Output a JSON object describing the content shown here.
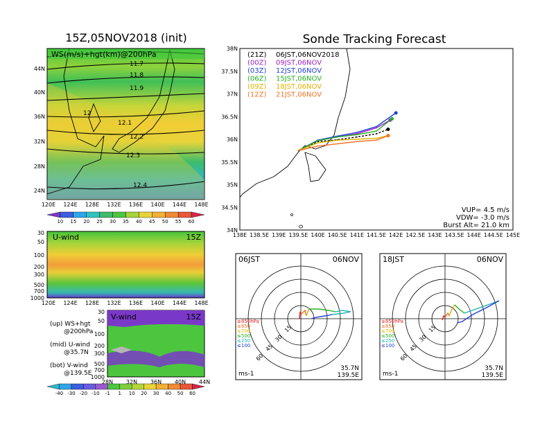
{
  "left": {
    "title": "15Z,05NOV2018 (init)",
    "top_panel": {
      "label": "WS(m/s)+hgt(km)@200hPa",
      "lat_ticks": [
        "44N",
        "40N",
        "36N",
        "32N",
        "28N",
        "24N"
      ],
      "lon_ticks": [
        "120E",
        "124E",
        "128E",
        "132E",
        "136E",
        "140E",
        "144E",
        "148E"
      ],
      "contour_labels": [
        "11.7",
        "11.8",
        "11.9",
        "12",
        "12.1",
        "12.2",
        "12.3",
        "12.4"
      ]
    },
    "ws_colorbar": [
      "10",
      "15",
      "20",
      "25",
      "30",
      "35",
      "40",
      "45",
      "50",
      "55",
      "60"
    ],
    "u_panel": {
      "label": "U-wind",
      "time": "15Z",
      "p_ticks": [
        "30",
        "50",
        "100",
        "200",
        "300",
        "500",
        "700",
        "1000"
      ],
      "lon_ticks": [
        "120E",
        "124E",
        "128E",
        "132E",
        "136E",
        "140E",
        "144E",
        "148E"
      ]
    },
    "v_panel": {
      "label": "V-wind",
      "time": "15Z",
      "p_ticks": [
        "30",
        "50",
        "100",
        "200",
        "300",
        "500",
        "700",
        "1000"
      ],
      "lat_ticks": [
        "28N",
        "32N",
        "36N",
        "40N",
        "44N"
      ]
    },
    "notes": [
      {
        "a": "(up) WS+hgt",
        "b": "@200hPa"
      },
      {
        "a": "(mid) U-wind",
        "b": "@35.7N"
      },
      {
        "a": "(bot) V-wind",
        "b": "@139.5E"
      }
    ],
    "uv_colorbar": [
      "-40",
      "-30",
      "-20",
      "-10",
      "-1",
      "1",
      "10",
      "20",
      "30",
      "40",
      "50",
      "60"
    ]
  },
  "right": {
    "title": "Sonde Tracking Forecast",
    "lat_ticks": [
      "38N",
      "37.5N",
      "37N",
      "36.5N",
      "36N",
      "35.5N",
      "35N",
      "34.5N",
      "34N"
    ],
    "lon_ticks": [
      "138E",
      "138.5E",
      "139E",
      "139.5E",
      "140E",
      "140.5E",
      "141E",
      "141.5E",
      "142E",
      "142.5E",
      "143E",
      "143.5E",
      "144E",
      "144.5E",
      "145E"
    ],
    "legend": [
      {
        "utc": "(21Z)",
        "jst": "06JST,06NOV2018",
        "color": "#000000"
      },
      {
        "utc": "(00Z)",
        "jst": "09JST,06NOV",
        "color": "#a020c0"
      },
      {
        "utc": "(03Z)",
        "jst": "12JST,06NOV",
        "color": "#1f3fd8"
      },
      {
        "utc": "(06Z)",
        "jst": "15JST,06NOV",
        "color": "#20b020"
      },
      {
        "utc": "(09Z)",
        "jst": "18JST,06NOV",
        "color": "#e0b000"
      },
      {
        "utc": "(12Z)",
        "jst": "21JST,06NOV",
        "color": "#f07020"
      }
    ],
    "params": {
      "vup": "VUP= 4.5 m/s",
      "vdw": "VDW= -3.0 m/s",
      "burst": "Burst Alt= 21.0 km"
    }
  },
  "hodographs": [
    {
      "time": "06JST",
      "date": "06NOV",
      "lat": "35.7N",
      "lon": "139.5E",
      "unit": "ms-1"
    },
    {
      "time": "18JST",
      "date": "06NOV",
      "lat": "35.7N",
      "lon": "139.5E",
      "unit": "ms-1"
    }
  ],
  "hodo_ring_labels": [
    "15",
    "30",
    "45",
    "60"
  ],
  "hodo_levels": [
    {
      "label": "≥850hPa",
      "color": "#e02020"
    },
    {
      "label": "≤850",
      "color": "#f07020"
    },
    {
      "label": "≤700",
      "color": "#e0b000"
    },
    {
      "label": "≤500",
      "color": "#20b020"
    },
    {
      "label": "≤250",
      "color": "#20b0b0"
    },
    {
      "label": "≤100",
      "color": "#1f3fd8"
    }
  ],
  "chart_data": [
    {
      "type": "scatter",
      "title": "Sonde Tracking Forecast",
      "xlabel": "",
      "ylabel": "",
      "xlim": [
        138,
        145
      ],
      "ylim": [
        34,
        38
      ],
      "series": [
        {
          "name": "(21Z) 06JST,06NOV2018",
          "color": "#000000",
          "points": [
            [
              139.5,
              35.75
            ],
            [
              140.0,
              35.95
            ],
            [
              140.5,
              35.99
            ],
            [
              141.0,
              36.05
            ],
            [
              141.5,
              36.12
            ],
            [
              141.8,
              36.22
            ]
          ]
        },
        {
          "name": "(00Z) 09JST,06NOV",
          "color": "#a020c0",
          "points": [
            [
              139.5,
              35.75
            ],
            [
              140.0,
              35.98
            ],
            [
              140.5,
              36.05
            ],
            [
              141.0,
              36.12
            ],
            [
              141.5,
              36.25
            ],
            [
              141.85,
              36.42
            ]
          ]
        },
        {
          "name": "(03Z) 12JST,06NOV",
          "color": "#1f3fd8",
          "points": [
            [
              139.5,
              35.75
            ],
            [
              140.0,
              35.98
            ],
            [
              140.5,
              36.07
            ],
            [
              141.0,
              36.15
            ],
            [
              141.5,
              36.28
            ],
            [
              142.0,
              36.58
            ]
          ]
        },
        {
          "name": "(06Z) 15JST,06NOV",
          "color": "#20b020",
          "points": [
            [
              139.5,
              35.75
            ],
            [
              140.0,
              35.97
            ],
            [
              140.5,
              36.05
            ],
            [
              141.0,
              36.1
            ],
            [
              141.5,
              36.18
            ],
            [
              141.9,
              36.45
            ]
          ]
        },
        {
          "name": "(09Z) 18JST,06NOV",
          "color": "#e0b000",
          "points": [
            [
              139.5,
              35.75
            ],
            [
              140.0,
              35.92
            ],
            [
              140.5,
              35.98
            ],
            [
              141.0,
              36.0
            ],
            [
              141.5,
              36.02
            ],
            [
              141.8,
              36.08
            ]
          ]
        },
        {
          "name": "(12Z) 21JST,06NOV",
          "color": "#f07020",
          "points": [
            [
              139.5,
              35.75
            ],
            [
              140.0,
              35.85
            ],
            [
              140.5,
              35.9
            ],
            [
              141.0,
              35.95
            ],
            [
              141.5,
              35.98
            ],
            [
              141.8,
              36.08
            ]
          ]
        }
      ]
    },
    {
      "type": "heatmap",
      "title": "15Z,05NOV2018 (init)",
      "subtitle": "WS(m/s)+hgt(km)@200hPa",
      "xlim": [
        120,
        149
      ],
      "ylim": [
        22,
        47
      ],
      "contours_km": [
        11.7,
        11.8,
        11.9,
        12,
        12.1,
        12.2,
        12.3,
        12.4
      ]
    }
  ]
}
